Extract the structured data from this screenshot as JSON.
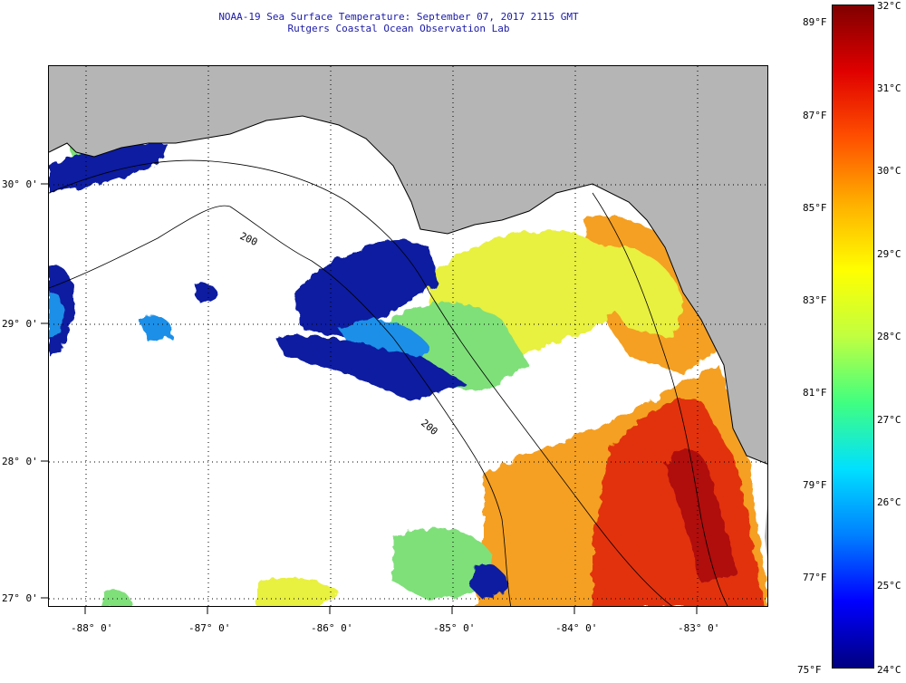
{
  "header": {
    "line1": "NOAA-19 Sea Surface Temperature:  September 07, 2017 2115 GMT",
    "line2": "Rutgers Coastal Ocean Observation Lab"
  },
  "map": {
    "longitude_labels": [
      "-88° 0'",
      "-87° 0'",
      "-86° 0'",
      "-85° 0'",
      "-84° 0'",
      "-83° 0'"
    ],
    "latitude_labels": [
      "30° 0'",
      "29° 0'",
      "28° 0'",
      "27° 0'"
    ],
    "contour_labels": [
      "200",
      "200"
    ],
    "colors": {
      "land": "#b5b5b5",
      "cloud": "#ffffff",
      "cold": "#0a1fa0",
      "cool": "#1c8fe8",
      "mid": "#7fe07a",
      "warm_mid": "#e8f040",
      "warm": "#f5a020",
      "hot": "#e23010",
      "hottest": "#b01010"
    }
  },
  "colorbar": {
    "celsius_labels": [
      "32°C",
      "31°C",
      "30°C",
      "29°C",
      "28°C",
      "27°C",
      "26°C",
      "25°C",
      "24°C"
    ],
    "fahrenheit_labels": [
      "89°F",
      "87°F",
      "85°F",
      "83°F",
      "81°F",
      "79°F",
      "77°F",
      "75°F"
    ],
    "range_c": [
      24,
      32
    ],
    "range_f": [
      75,
      89.6
    ]
  }
}
